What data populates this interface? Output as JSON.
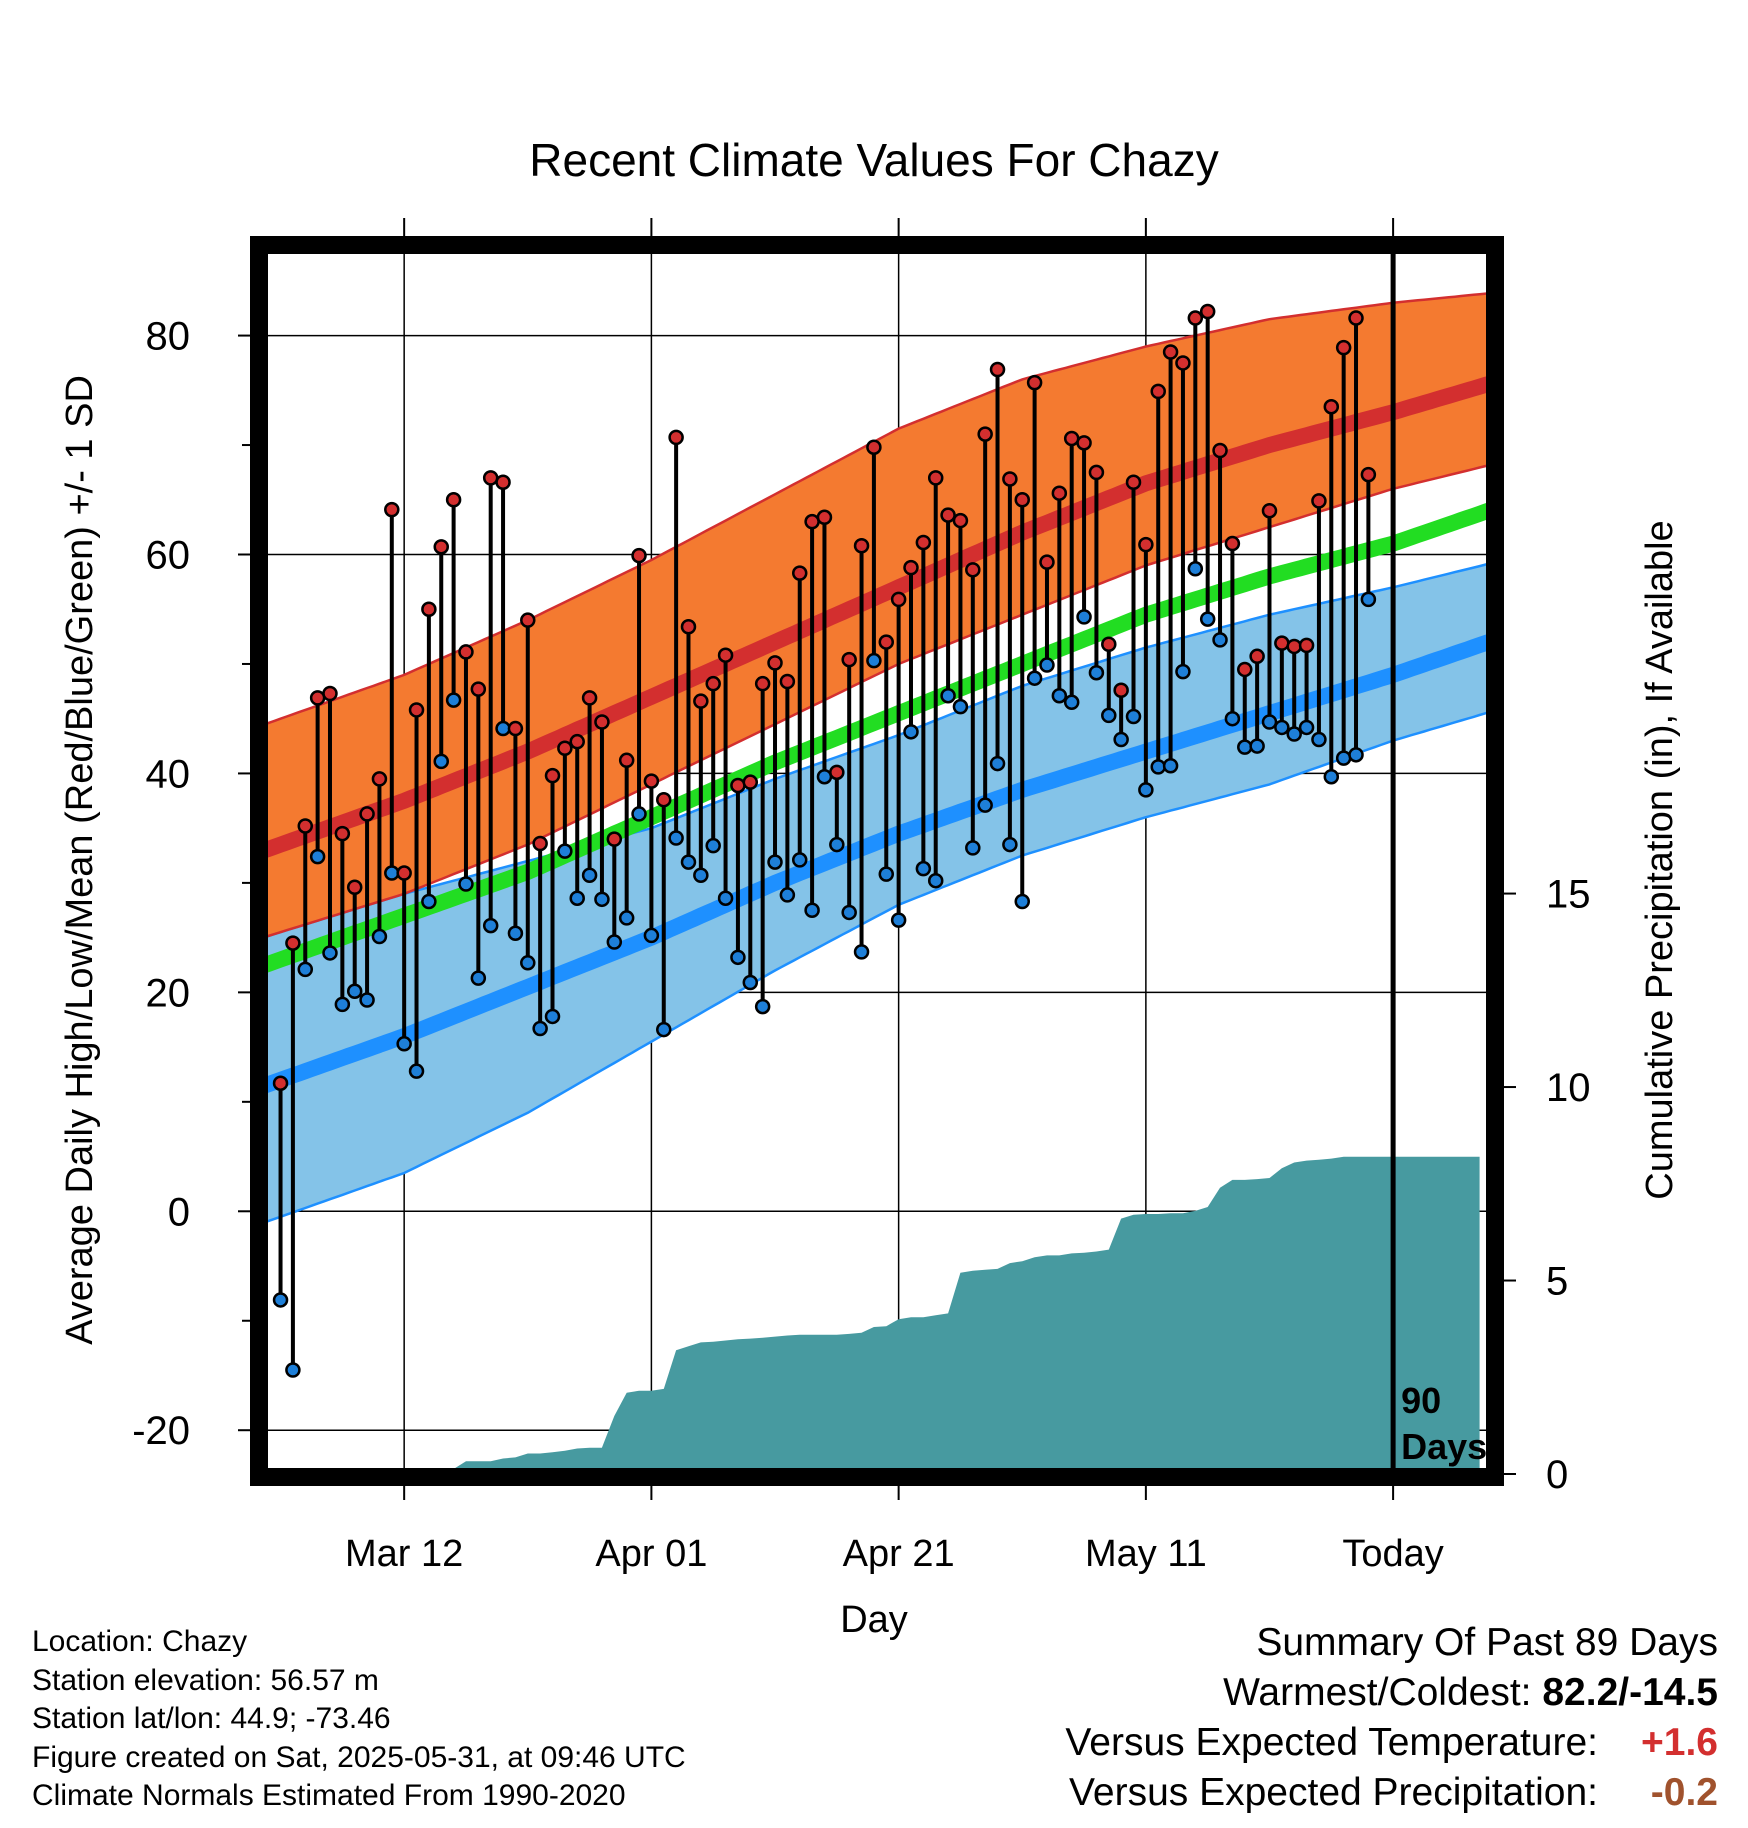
{
  "chart_data": {
    "type": "line",
    "title": "Recent Climate Values For Chazy",
    "xlabel": "Day",
    "ylabel": "Average Daily High/Low/Mean (Red/Blue/Green) +/- 1 SD",
    "y2label": "Cumulative Precipitation (in), If Available",
    "x_ticks": [
      "Mar 12",
      "Apr 01",
      "Apr 21",
      "May 11",
      "Today"
    ],
    "x_tick_days": [
      10,
      30,
      50,
      70,
      90
    ],
    "y_ticks": [
      "-20",
      "0",
      "20",
      "40",
      "60",
      "80"
    ],
    "y_tick_values": [
      -20,
      0,
      20,
      40,
      60,
      80
    ],
    "ylim": [
      -24,
      88
    ],
    "xlim": [
      -1.5,
      98
    ],
    "y2_ticks": [
      "0",
      "5",
      "10",
      "15"
    ],
    "y2_tick_values": [
      0,
      5,
      10,
      15
    ],
    "y2lim": [
      0,
      16
    ],
    "today_label": [
      "90",
      "Days"
    ],
    "grid": true,
    "colors": {
      "high_band": "#f47a30",
      "high_mean": "#d32f2f",
      "low_band": "#84c3e8",
      "low_mean": "#1e90ff",
      "mean": "#22dd22",
      "precip": "#479aa0",
      "high_dot": "#d32f2f",
      "low_dot": "#1e7fd8"
    },
    "normals": {
      "days": [
        0,
        10,
        20,
        30,
        40,
        50,
        60,
        70,
        80,
        90,
        99
      ],
      "high_mean": [
        33.5,
        37.5,
        42,
        47,
        52,
        57,
        62,
        66.5,
        70,
        73,
        76
      ],
      "high_sd_upper": [
        45,
        49,
        54,
        59.5,
        65.5,
        71.5,
        76,
        79,
        81.5,
        83,
        84
      ],
      "high_sd_lower": [
        25.5,
        29,
        33.5,
        39,
        44.5,
        50,
        54.5,
        59,
        62.5,
        66,
        68.5
      ],
      "low_mean": [
        12,
        16,
        20.5,
        25,
        30,
        34.5,
        38.5,
        42,
        45.5,
        49,
        52.5
      ],
      "low_sd_upper": [
        25.5,
        29,
        32,
        35,
        39.5,
        43.5,
        48,
        51.5,
        54.5,
        57,
        59.5
      ],
      "low_sd_lower": [
        -0.5,
        3.5,
        9,
        15.5,
        22,
        28,
        32.5,
        36,
        39,
        43,
        46
      ],
      "mean": [
        23,
        27,
        31,
        36,
        41,
        45.5,
        50,
        54.5,
        58,
        61,
        64.5
      ]
    },
    "series": [
      {
        "name": "High",
        "values": [
          11.7,
          24.5,
          35.2,
          46.9,
          47.3,
          34.5,
          29.6,
          36.3,
          39.5,
          64.1,
          30.9,
          45.8,
          55.0,
          60.7,
          65.0,
          51.1,
          47.7,
          67.0,
          66.6,
          44.1,
          54.0,
          33.6,
          39.8,
          42.3,
          42.9,
          46.9,
          44.7,
          34.0,
          41.2,
          59.9,
          39.3,
          37.6,
          70.7,
          53.4,
          46.6,
          48.2,
          50.8,
          38.9,
          39.2,
          48.2,
          50.1,
          48.4,
          58.3,
          63.0,
          63.4,
          40.1,
          50.4,
          60.8,
          69.8,
          52.0,
          55.9,
          58.8,
          61.1,
          67.0,
          63.6,
          63.1,
          58.6,
          71.0,
          76.9,
          66.9,
          65.0,
          75.7,
          59.3,
          65.6,
          70.6,
          70.2,
          67.5,
          51.8,
          47.6,
          66.6,
          60.9,
          74.9,
          78.5,
          77.5,
          81.6,
          82.2,
          69.5,
          61.0,
          49.5,
          50.7,
          64.0,
          51.9,
          51.6,
          51.7,
          64.9,
          73.5,
          78.9,
          81.6,
          67.3
        ],
        "color": "#d32f2f"
      },
      {
        "name": "Low",
        "values": [
          -8.1,
          -14.5,
          22.1,
          32.4,
          23.6,
          18.9,
          20.1,
          19.3,
          25.1,
          30.9,
          15.3,
          12.8,
          28.3,
          41.1,
          46.7,
          29.9,
          21.3,
          26.1,
          44.1,
          25.4,
          22.7,
          16.7,
          17.8,
          32.9,
          28.6,
          30.7,
          28.5,
          24.6,
          26.8,
          36.3,
          25.2,
          16.6,
          34.1,
          31.9,
          30.7,
          33.4,
          28.6,
          23.2,
          20.9,
          18.7,
          31.9,
          28.9,
          32.1,
          27.5,
          39.7,
          33.5,
          27.3,
          23.7,
          50.3,
          30.8,
          26.6,
          43.8,
          31.3,
          30.2,
          47.1,
          46.1,
          33.2,
          37.1,
          40.9,
          33.5,
          28.3,
          48.7,
          49.9,
          47.1,
          46.5,
          54.3,
          49.2,
          45.3,
          43.1,
          45.2,
          38.5,
          40.6,
          40.7,
          49.3,
          58.7,
          54.1,
          52.2,
          45.0,
          42.4,
          42.5,
          44.7,
          44.2,
          43.6,
          44.2,
          43.1,
          39.7,
          41.4,
          41.7,
          55.9
        ],
        "color": "#1e7fd8"
      },
      {
        "name": "Cumulative Precipitation",
        "values": [
          0,
          0,
          0,
          0,
          0,
          0,
          0,
          0,
          0.03,
          0.05,
          0.1,
          0.1,
          0.1,
          0.13,
          0.13,
          0.33,
          0.33,
          0.33,
          0.4,
          0.43,
          0.53,
          0.53,
          0.56,
          0.6,
          0.66,
          0.68,
          0.68,
          1.5,
          2.1,
          2.15,
          2.15,
          2.2,
          3.2,
          3.3,
          3.4,
          3.42,
          3.45,
          3.48,
          3.5,
          3.52,
          3.55,
          3.58,
          3.6,
          3.6,
          3.6,
          3.6,
          3.62,
          3.65,
          3.8,
          3.82,
          4.0,
          4.05,
          4.05,
          4.1,
          4.15,
          5.2,
          5.25,
          5.28,
          5.3,
          5.45,
          5.5,
          5.6,
          5.65,
          5.65,
          5.7,
          5.72,
          5.75,
          5.8,
          6.6,
          6.7,
          6.72,
          6.72,
          6.74,
          6.74,
          6.8,
          6.9,
          7.4,
          7.6,
          7.6,
          7.62,
          7.65,
          7.9,
          8.05,
          8.1,
          8.12,
          8.15,
          8.2,
          8.2,
          8.2,
          8.2,
          8.2,
          8.2,
          8.2,
          8.2,
          8.2,
          8.2,
          8.2,
          8.2
        ],
        "color": "#479aa0"
      }
    ]
  },
  "footer": {
    "location": "Location: Chazy",
    "elevation": "Station elevation: 56.57 m",
    "latlon": "Station lat/lon: 44.9; -73.46",
    "created": "Figure created on Sat, 2025-05-31, at 09:46 UTC",
    "normals": "Climate Normals Estimated From 1990-2020"
  },
  "summary": {
    "title": "Summary Of Past 89 Days",
    "warmest_coldest_label": "Warmest/Coldest: ",
    "warmest_coldest_value": "82.2/-14.5",
    "temp_label": "Versus Expected Temperature:",
    "temp_value": "+1.6",
    "precip_label": "Versus Expected Precipitation:",
    "precip_value": "-0.2"
  }
}
